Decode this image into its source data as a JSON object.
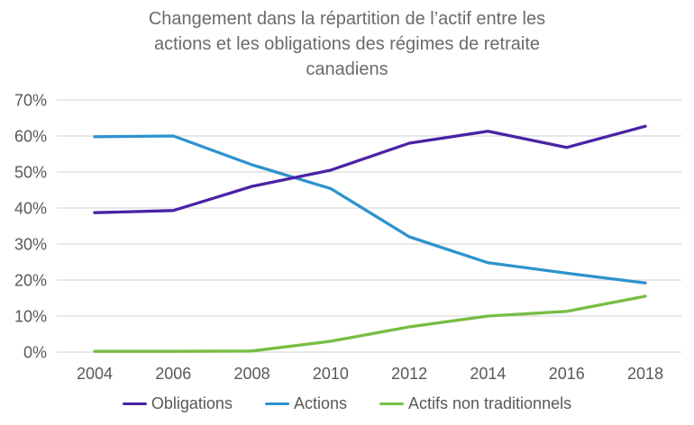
{
  "chart_data": {
    "type": "line",
    "title": "Changement dans la répartition de l’actif entre les actions et les obligations des régimes de retraite canadiens",
    "categories": [
      "2004",
      "2006",
      "2008",
      "2010",
      "2012",
      "2014",
      "2016",
      "2018"
    ],
    "series": [
      {
        "name": "Obligations",
        "color": "#4A22A5",
        "values": [
          38.7,
          39.3,
          46.0,
          50.5,
          58.0,
          61.3,
          56.8,
          62.7
        ]
      },
      {
        "name": "Actions",
        "color": "#2E93CE",
        "values": [
          59.8,
          60.0,
          52.0,
          45.4,
          32.0,
          24.8,
          21.9,
          19.2
        ]
      },
      {
        "name": "Actifs non traditionnels",
        "color": "#77BD43",
        "values": [
          0.2,
          0.2,
          0.3,
          3.0,
          7.0,
          10.0,
          11.3,
          15.5
        ]
      }
    ],
    "ylim": [
      0,
      70
    ],
    "ytick_step": 10,
    "ytick_suffix": "%",
    "grid": "horizontal",
    "legend_position": "bottom",
    "colors": {
      "title_text": "#6b6b6b",
      "axis_text": "#595959",
      "gridline": "#D9D9D9",
      "background": "#FFFFFF"
    }
  }
}
